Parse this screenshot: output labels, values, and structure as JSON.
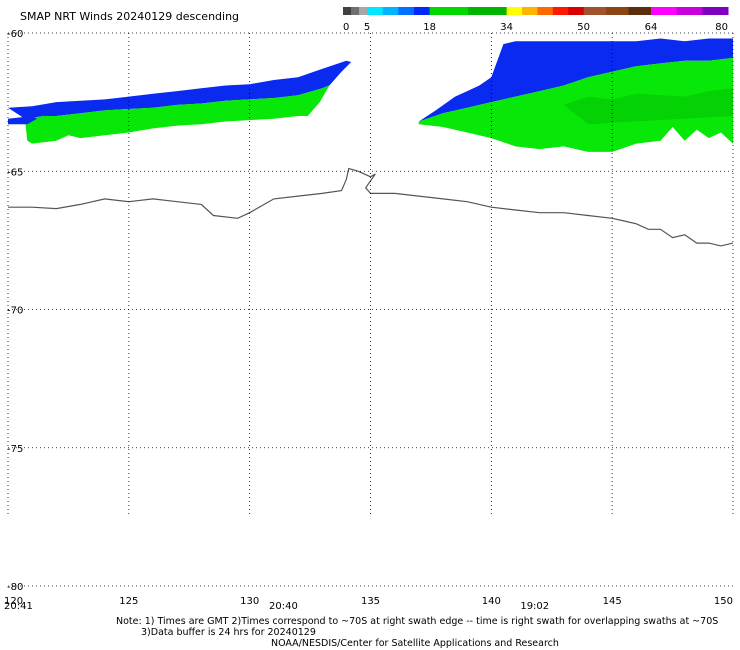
{
  "header": {
    "title": "SMAP NRT Winds  20240129 descending"
  },
  "legend": {
    "tick_labels": [
      "0",
      "5",
      "18",
      "34",
      "50",
      "64",
      "80"
    ],
    "tick_values": [
      0,
      5,
      18,
      34,
      50,
      64,
      80
    ],
    "segments": [
      {
        "from": 0,
        "to": 5,
        "colors": [
          "#404040",
          "#707070",
          "#a8a8a8"
        ]
      },
      {
        "from": 5,
        "to": 18,
        "colors": [
          "#00e8ff",
          "#00b4ff",
          "#0070ff",
          "#0028ff"
        ]
      },
      {
        "from": 18,
        "to": 34,
        "colors": [
          "#00d800",
          "#00b400"
        ]
      },
      {
        "from": 34,
        "to": 50,
        "colors": [
          "#ffff00",
          "#ffb400",
          "#ff6800",
          "#ff1800",
          "#d80000"
        ]
      },
      {
        "from": 50,
        "to": 64,
        "colors": [
          "#a0522d",
          "#8b4513",
          "#5a2d0c"
        ]
      },
      {
        "from": 64,
        "to": 80,
        "colors": [
          "#ff00ff",
          "#c800e0",
          "#8000c0"
        ]
      }
    ]
  },
  "map": {
    "lon_range": [
      120,
      150
    ],
    "lat_range": [
      -80,
      -60
    ],
    "grid": true,
    "lat_labels": [
      "-60",
      "-65",
      "-70",
      "-75",
      "-80"
    ],
    "lat_values": [
      -60,
      -65,
      -70,
      -75,
      -80
    ],
    "lon_labels": [
      "120",
      "125",
      "130",
      "135",
      "140",
      "145",
      "150"
    ],
    "lon_values": [
      120,
      125,
      130,
      135,
      140,
      145,
      150
    ],
    "time_labels": [
      {
        "text": "20:41",
        "lon": 120
      },
      {
        "text": "20:40",
        "lon": 130.8
      },
      {
        "text": "19:02",
        "lon": 141.2
      }
    ],
    "colors": {
      "coastline": "#555555",
      "grid": "#000000",
      "blue_swath": "#0a2af0",
      "green_swath": "#08e808",
      "dark_green": "#00b800"
    },
    "swaths": [
      {
        "name": "swath-west",
        "blue_top": [
          [
            120,
            -62.7
          ],
          [
            121,
            -62.65
          ],
          [
            122,
            -62.5
          ],
          [
            123,
            -62.45
          ],
          [
            124,
            -62.4
          ],
          [
            125,
            -62.3
          ],
          [
            126,
            -62.2
          ],
          [
            127,
            -62.1
          ],
          [
            128,
            -62.0
          ],
          [
            129,
            -61.9
          ],
          [
            130,
            -61.85
          ],
          [
            131,
            -61.7
          ],
          [
            132,
            -61.6
          ],
          [
            133,
            -61.3
          ],
          [
            134,
            -61.0
          ],
          [
            134.2,
            -61.05
          ],
          [
            133.8,
            -61.4
          ]
        ],
        "green_top": [
          [
            120.7,
            -63.1
          ],
          [
            121.5,
            -63.0
          ],
          [
            122,
            -63.0
          ],
          [
            123,
            -62.9
          ],
          [
            124,
            -62.8
          ],
          [
            125,
            -62.75
          ],
          [
            126,
            -62.7
          ],
          [
            127,
            -62.6
          ],
          [
            128,
            -62.55
          ],
          [
            129,
            -62.45
          ],
          [
            130,
            -62.4
          ],
          [
            131,
            -62.35
          ],
          [
            132,
            -62.25
          ],
          [
            133,
            -62.0
          ],
          [
            133.3,
            -61.9
          ]
        ],
        "green_bottom": [
          [
            133.3,
            -61.9
          ],
          [
            132.9,
            -62.5
          ],
          [
            132.4,
            -63.0
          ],
          [
            132,
            -63.0
          ],
          [
            131,
            -63.1
          ],
          [
            130,
            -63.15
          ],
          [
            129,
            -63.2
          ],
          [
            128,
            -63.3
          ],
          [
            127,
            -63.35
          ],
          [
            126,
            -63.45
          ],
          [
            125,
            -63.6
          ],
          [
            124,
            -63.7
          ],
          [
            123,
            -63.8
          ],
          [
            122.5,
            -63.7
          ],
          [
            122,
            -63.9
          ],
          [
            121,
            -64.0
          ],
          [
            120.8,
            -63.9
          ]
        ],
        "blue_bottom_west": [
          [
            120,
            -63.1
          ],
          [
            121,
            -63.0
          ],
          [
            121.2,
            -63.1
          ],
          [
            120.8,
            -63.3
          ],
          [
            120,
            -63.3
          ]
        ]
      },
      {
        "name": "swath-east",
        "blue_top": [
          [
            137,
            -63.2
          ],
          [
            137.7,
            -62.8
          ],
          [
            138.5,
            -62.3
          ],
          [
            139,
            -62.1
          ],
          [
            139.5,
            -61.9
          ],
          [
            140,
            -61.6
          ],
          [
            140.5,
            -60.4
          ],
          [
            141,
            -60.3
          ],
          [
            142,
            -60.3
          ],
          [
            143,
            -60.3
          ],
          [
            144,
            -60.3
          ],
          [
            145,
            -60.3
          ],
          [
            146,
            -60.3
          ],
          [
            147,
            -60.2
          ],
          [
            148,
            -60.3
          ],
          [
            149,
            -60.2
          ],
          [
            150,
            -60.2
          ]
        ],
        "green_top": [
          [
            137,
            -63.2
          ],
          [
            138,
            -62.9
          ],
          [
            139,
            -62.7
          ],
          [
            140,
            -62.5
          ],
          [
            141,
            -62.3
          ],
          [
            142,
            -62.1
          ],
          [
            143,
            -61.9
          ],
          [
            144,
            -61.6
          ],
          [
            145,
            -61.4
          ],
          [
            146,
            -61.2
          ],
          [
            147,
            -61.1
          ],
          [
            148,
            -61.0
          ],
          [
            149,
            -61.0
          ],
          [
            150,
            -60.9
          ]
        ],
        "green_bottom": [
          [
            150,
            -64.0
          ],
          [
            149.5,
            -63.6
          ],
          [
            149,
            -63.8
          ],
          [
            148.5,
            -63.5
          ],
          [
            148,
            -63.9
          ],
          [
            147.5,
            -63.4
          ],
          [
            147,
            -63.9
          ],
          [
            146,
            -64.0
          ],
          [
            145,
            -64.3
          ],
          [
            144,
            -64.3
          ],
          [
            143,
            -64.1
          ],
          [
            142,
            -64.2
          ],
          [
            141,
            -64.1
          ],
          [
            140,
            -63.8
          ],
          [
            139,
            -63.6
          ],
          [
            138,
            -63.4
          ],
          [
            137,
            -63.3
          ]
        ]
      }
    ],
    "coastline": [
      [
        120,
        -66.3
      ],
      [
        121,
        -66.3
      ],
      [
        122,
        -66.35
      ],
      [
        123,
        -66.2
      ],
      [
        124,
        -66.0
      ],
      [
        125,
        -66.1
      ],
      [
        126,
        -66.0
      ],
      [
        127,
        -66.1
      ],
      [
        128,
        -66.2
      ],
      [
        128.5,
        -66.6
      ],
      [
        129.5,
        -66.7
      ],
      [
        130,
        -66.5
      ],
      [
        131,
        -66.0
      ],
      [
        132,
        -65.9
      ],
      [
        133,
        -65.8
      ],
      [
        133.8,
        -65.7
      ],
      [
        134,
        -65.3
      ],
      [
        134.1,
        -64.9
      ],
      [
        134.5,
        -65.0
      ],
      [
        135,
        -65.2
      ],
      [
        135.2,
        -65.1
      ],
      [
        134.8,
        -65.6
      ],
      [
        135,
        -65.8
      ],
      [
        136,
        -65.8
      ],
      [
        137,
        -65.9
      ],
      [
        138,
        -66.0
      ],
      [
        139,
        -66.1
      ],
      [
        140,
        -66.3
      ],
      [
        141,
        -66.4
      ],
      [
        142,
        -66.5
      ],
      [
        143,
        -66.5
      ],
      [
        144,
        -66.6
      ],
      [
        145,
        -66.7
      ],
      [
        145.5,
        -66.8
      ],
      [
        146,
        -66.9
      ],
      [
        146.5,
        -67.1
      ],
      [
        147,
        -67.1
      ],
      [
        147.5,
        -67.4
      ],
      [
        148,
        -67.3
      ],
      [
        148.5,
        -67.6
      ],
      [
        149,
        -67.6
      ],
      [
        149.5,
        -67.7
      ],
      [
        150,
        -67.6
      ]
    ]
  },
  "footer": {
    "note_line1": "Note: 1) Times are GMT 2)Times correspond to ~70S at right swath edge -- time is right swath for overlapping swaths at ~70S",
    "note_line2": "3)Data buffer is 24 hrs for 20240129",
    "credit": "NOAA/NESDIS/Center for Satellite Applications and Research"
  }
}
